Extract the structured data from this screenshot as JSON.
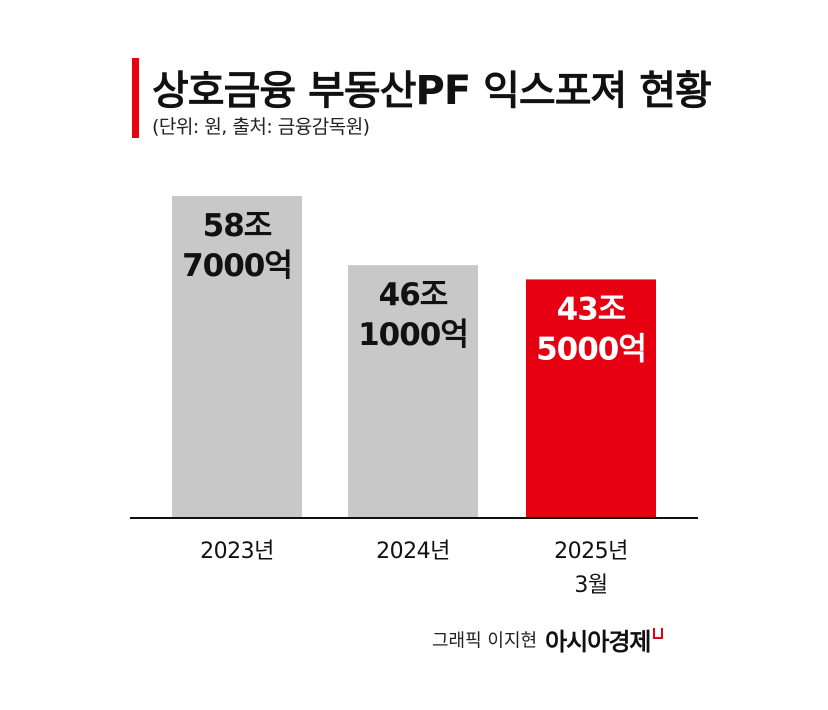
{
  "title": "상호금융 부동산PF 익스포져 현황",
  "subtitle": "(단위: 원, 출처: 금융감독원)",
  "credit": {
    "text": "그래픽 이지현",
    "brand": "아시아경제"
  },
  "colors": {
    "accent": "#e60012",
    "bar_default": "#c8c8c8",
    "highlight_label": "#ffffff",
    "label": "#111111"
  },
  "chart_data": {
    "type": "bar",
    "categories": [
      [
        "2023년"
      ],
      [
        "2024년"
      ],
      [
        "2025년",
        "3월"
      ]
    ],
    "values": [
      587000,
      461000,
      435000
    ],
    "value_unit": "억",
    "data_labels": [
      [
        "58조",
        "7000억"
      ],
      [
        "46조",
        "1000억"
      ],
      [
        "43조",
        "5000억"
      ]
    ],
    "highlight_index": 2,
    "ylim": [
      0,
      680000
    ],
    "grid": false,
    "legend": "none",
    "xlabel": "",
    "ylabel": ""
  }
}
